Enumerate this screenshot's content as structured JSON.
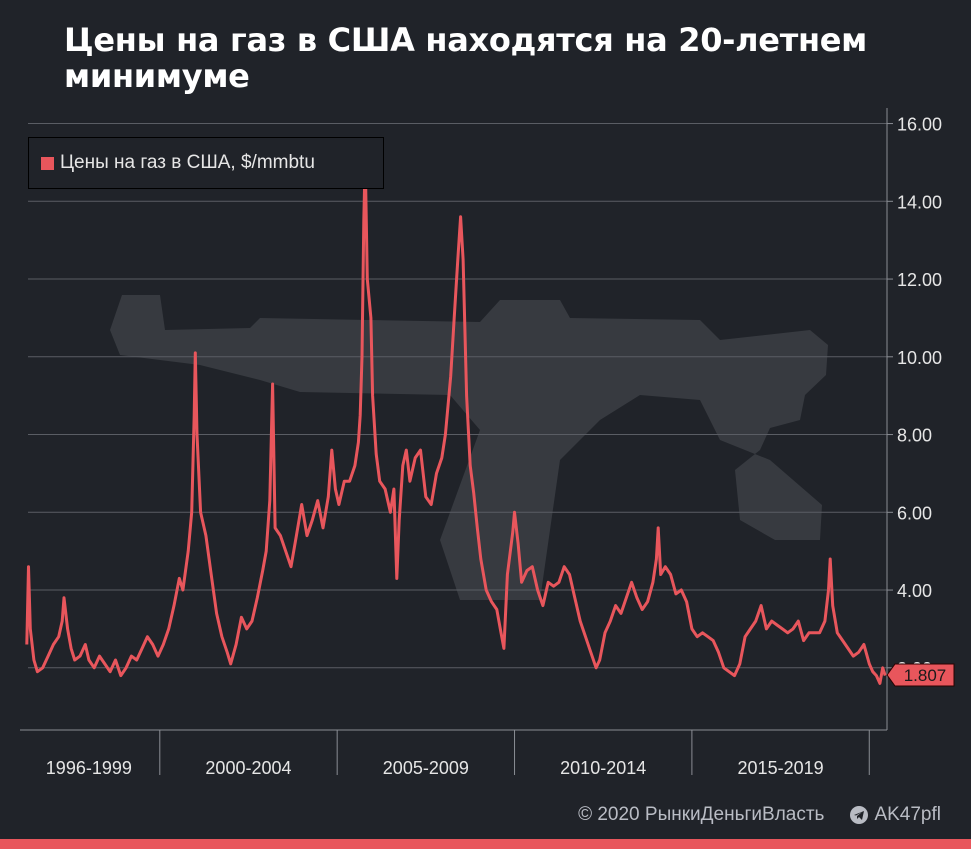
{
  "title": "Цены на газ в США находятся на 20-летнем минимуме",
  "footer": {
    "copyright": "© 2020  РынкиДеньгиВласть",
    "channel": "AK47pfl"
  },
  "colors": {
    "background": "#202329",
    "series": "#e8565c",
    "grid": "#5a5d64",
    "text": "#e6e6e6",
    "accent_bar": "#e8565c"
  },
  "chart_data": {
    "type": "line",
    "title": "Цены на газ в США находятся на 20-летнем минимуме",
    "legend": "Цены на газ в США, $/mmbtu",
    "legend_position": "top-left",
    "y_axis_position": "right",
    "grid": true,
    "ylim": [
      0.4,
      16.4
    ],
    "xlim": [
      1996.2,
      2020.5
    ],
    "y_ticks": [
      2,
      4,
      6,
      8,
      10,
      12,
      14,
      16
    ],
    "y_tick_labels": [
      "2.00",
      "4.00",
      "6.00",
      "8.00",
      "10.00",
      "12.00",
      "14.00",
      "16.00"
    ],
    "x_group_labels": [
      "1996-1999",
      "2000-2004",
      "2005-2009",
      "2010-2014",
      "2015-2019"
    ],
    "x_group_label_positions": [
      1998.0,
      2002.5,
      2007.5,
      2012.5,
      2017.5
    ],
    "x_dividers": [
      2000.0,
      2005.0,
      2010.0,
      2015.0,
      2020.0
    ],
    "last_value": "1.807",
    "last_value_y": 1.807,
    "series": [
      {
        "name": "Цены на газ в США, $/mmbtu",
        "points": [
          [
            1996.25,
            2.6
          ],
          [
            1996.3,
            4.6
          ],
          [
            1996.35,
            3.0
          ],
          [
            1996.45,
            2.2
          ],
          [
            1996.55,
            1.9
          ],
          [
            1996.7,
            2.0
          ],
          [
            1996.85,
            2.3
          ],
          [
            1997.0,
            2.6
          ],
          [
            1997.15,
            2.8
          ],
          [
            1997.25,
            3.2
          ],
          [
            1997.3,
            3.8
          ],
          [
            1997.4,
            3.0
          ],
          [
            1997.5,
            2.5
          ],
          [
            1997.6,
            2.2
          ],
          [
            1997.75,
            2.3
          ],
          [
            1997.9,
            2.6
          ],
          [
            1998.0,
            2.2
          ],
          [
            1998.15,
            2.0
          ],
          [
            1998.3,
            2.3
          ],
          [
            1998.45,
            2.1
          ],
          [
            1998.6,
            1.9
          ],
          [
            1998.75,
            2.2
          ],
          [
            1998.9,
            1.8
          ],
          [
            1999.05,
            2.0
          ],
          [
            1999.2,
            2.3
          ],
          [
            1999.35,
            2.2
          ],
          [
            1999.5,
            2.5
          ],
          [
            1999.65,
            2.8
          ],
          [
            1999.8,
            2.6
          ],
          [
            1999.95,
            2.3
          ],
          [
            2000.1,
            2.6
          ],
          [
            2000.25,
            3.0
          ],
          [
            2000.4,
            3.6
          ],
          [
            2000.55,
            4.3
          ],
          [
            2000.65,
            4.0
          ],
          [
            2000.8,
            5.0
          ],
          [
            2000.9,
            6.0
          ],
          [
            2000.97,
            8.5
          ],
          [
            2001.0,
            10.1
          ],
          [
            2001.05,
            8.0
          ],
          [
            2001.15,
            6.0
          ],
          [
            2001.3,
            5.4
          ],
          [
            2001.45,
            4.4
          ],
          [
            2001.6,
            3.4
          ],
          [
            2001.75,
            2.8
          ],
          [
            2001.9,
            2.4
          ],
          [
            2002.0,
            2.1
          ],
          [
            2002.15,
            2.6
          ],
          [
            2002.3,
            3.3
          ],
          [
            2002.45,
            3.0
          ],
          [
            2002.6,
            3.2
          ],
          [
            2002.75,
            3.8
          ],
          [
            2002.9,
            4.5
          ],
          [
            2003.0,
            5.0
          ],
          [
            2003.1,
            6.3
          ],
          [
            2003.18,
            9.3
          ],
          [
            2003.25,
            5.6
          ],
          [
            2003.4,
            5.4
          ],
          [
            2003.55,
            5.0
          ],
          [
            2003.7,
            4.6
          ],
          [
            2003.85,
            5.4
          ],
          [
            2004.0,
            6.2
          ],
          [
            2004.15,
            5.4
          ],
          [
            2004.3,
            5.8
          ],
          [
            2004.45,
            6.3
          ],
          [
            2004.6,
            5.6
          ],
          [
            2004.75,
            6.4
          ],
          [
            2004.85,
            7.6
          ],
          [
            2004.95,
            6.6
          ],
          [
            2005.05,
            6.2
          ],
          [
            2005.2,
            6.8
          ],
          [
            2005.35,
            6.8
          ],
          [
            2005.5,
            7.2
          ],
          [
            2005.6,
            7.8
          ],
          [
            2005.65,
            8.5
          ],
          [
            2005.7,
            10.0
          ],
          [
            2005.75,
            13.5
          ],
          [
            2005.79,
            15.1
          ],
          [
            2005.85,
            12.0
          ],
          [
            2005.95,
            11.0
          ],
          [
            2006.0,
            9.0
          ],
          [
            2006.1,
            7.5
          ],
          [
            2006.2,
            6.8
          ],
          [
            2006.35,
            6.6
          ],
          [
            2006.5,
            6.0
          ],
          [
            2006.6,
            6.6
          ],
          [
            2006.68,
            4.3
          ],
          [
            2006.75,
            5.8
          ],
          [
            2006.85,
            7.2
          ],
          [
            2006.95,
            7.6
          ],
          [
            2007.05,
            6.8
          ],
          [
            2007.2,
            7.4
          ],
          [
            2007.35,
            7.6
          ],
          [
            2007.5,
            6.4
          ],
          [
            2007.65,
            6.2
          ],
          [
            2007.8,
            7.0
          ],
          [
            2007.95,
            7.4
          ],
          [
            2008.05,
            8.0
          ],
          [
            2008.2,
            9.5
          ],
          [
            2008.3,
            11.0
          ],
          [
            2008.4,
            12.5
          ],
          [
            2008.48,
            13.6
          ],
          [
            2008.55,
            12.5
          ],
          [
            2008.65,
            9.0
          ],
          [
            2008.75,
            7.2
          ],
          [
            2008.85,
            6.5
          ],
          [
            2008.95,
            5.6
          ],
          [
            2009.05,
            4.8
          ],
          [
            2009.2,
            4.0
          ],
          [
            2009.35,
            3.7
          ],
          [
            2009.5,
            3.5
          ],
          [
            2009.6,
            3.0
          ],
          [
            2009.7,
            2.5
          ],
          [
            2009.8,
            4.4
          ],
          [
            2009.95,
            5.5
          ],
          [
            2010.0,
            6.0
          ],
          [
            2010.1,
            5.2
          ],
          [
            2010.2,
            4.2
          ],
          [
            2010.35,
            4.5
          ],
          [
            2010.5,
            4.6
          ],
          [
            2010.65,
            4.0
          ],
          [
            2010.8,
            3.6
          ],
          [
            2010.95,
            4.2
          ],
          [
            2011.1,
            4.1
          ],
          [
            2011.25,
            4.2
          ],
          [
            2011.4,
            4.6
          ],
          [
            2011.55,
            4.4
          ],
          [
            2011.7,
            3.8
          ],
          [
            2011.85,
            3.2
          ],
          [
            2012.0,
            2.8
          ],
          [
            2012.15,
            2.4
          ],
          [
            2012.3,
            2.0
          ],
          [
            2012.4,
            2.2
          ],
          [
            2012.55,
            2.9
          ],
          [
            2012.7,
            3.2
          ],
          [
            2012.85,
            3.6
          ],
          [
            2013.0,
            3.4
          ],
          [
            2013.15,
            3.8
          ],
          [
            2013.3,
            4.2
          ],
          [
            2013.45,
            3.8
          ],
          [
            2013.6,
            3.5
          ],
          [
            2013.75,
            3.7
          ],
          [
            2013.9,
            4.2
          ],
          [
            2014.0,
            4.8
          ],
          [
            2014.05,
            5.6
          ],
          [
            2014.12,
            4.4
          ],
          [
            2014.25,
            4.6
          ],
          [
            2014.4,
            4.4
          ],
          [
            2014.55,
            3.9
          ],
          [
            2014.7,
            4.0
          ],
          [
            2014.85,
            3.7
          ],
          [
            2015.0,
            3.0
          ],
          [
            2015.15,
            2.8
          ],
          [
            2015.3,
            2.9
          ],
          [
            2015.45,
            2.8
          ],
          [
            2015.6,
            2.7
          ],
          [
            2015.75,
            2.4
          ],
          [
            2015.9,
            2.0
          ],
          [
            2016.05,
            1.9
          ],
          [
            2016.2,
            1.8
          ],
          [
            2016.35,
            2.1
          ],
          [
            2016.5,
            2.8
          ],
          [
            2016.65,
            3.0
          ],
          [
            2016.8,
            3.2
          ],
          [
            2016.95,
            3.6
          ],
          [
            2017.1,
            3.0
          ],
          [
            2017.25,
            3.2
          ],
          [
            2017.4,
            3.1
          ],
          [
            2017.55,
            3.0
          ],
          [
            2017.7,
            2.9
          ],
          [
            2017.85,
            3.0
          ],
          [
            2018.0,
            3.2
          ],
          [
            2018.15,
            2.7
          ],
          [
            2018.3,
            2.9
          ],
          [
            2018.45,
            2.9
          ],
          [
            2018.6,
            2.9
          ],
          [
            2018.75,
            3.2
          ],
          [
            2018.85,
            4.0
          ],
          [
            2018.9,
            4.8
          ],
          [
            2018.97,
            3.6
          ],
          [
            2019.1,
            2.9
          ],
          [
            2019.25,
            2.7
          ],
          [
            2019.4,
            2.5
          ],
          [
            2019.55,
            2.3
          ],
          [
            2019.7,
            2.4
          ],
          [
            2019.85,
            2.6
          ],
          [
            2020.0,
            2.1
          ],
          [
            2020.1,
            1.9
          ],
          [
            2020.2,
            1.8
          ],
          [
            2020.3,
            1.6
          ],
          [
            2020.38,
            2.0
          ],
          [
            2020.45,
            1.8
          ]
        ]
      }
    ]
  }
}
